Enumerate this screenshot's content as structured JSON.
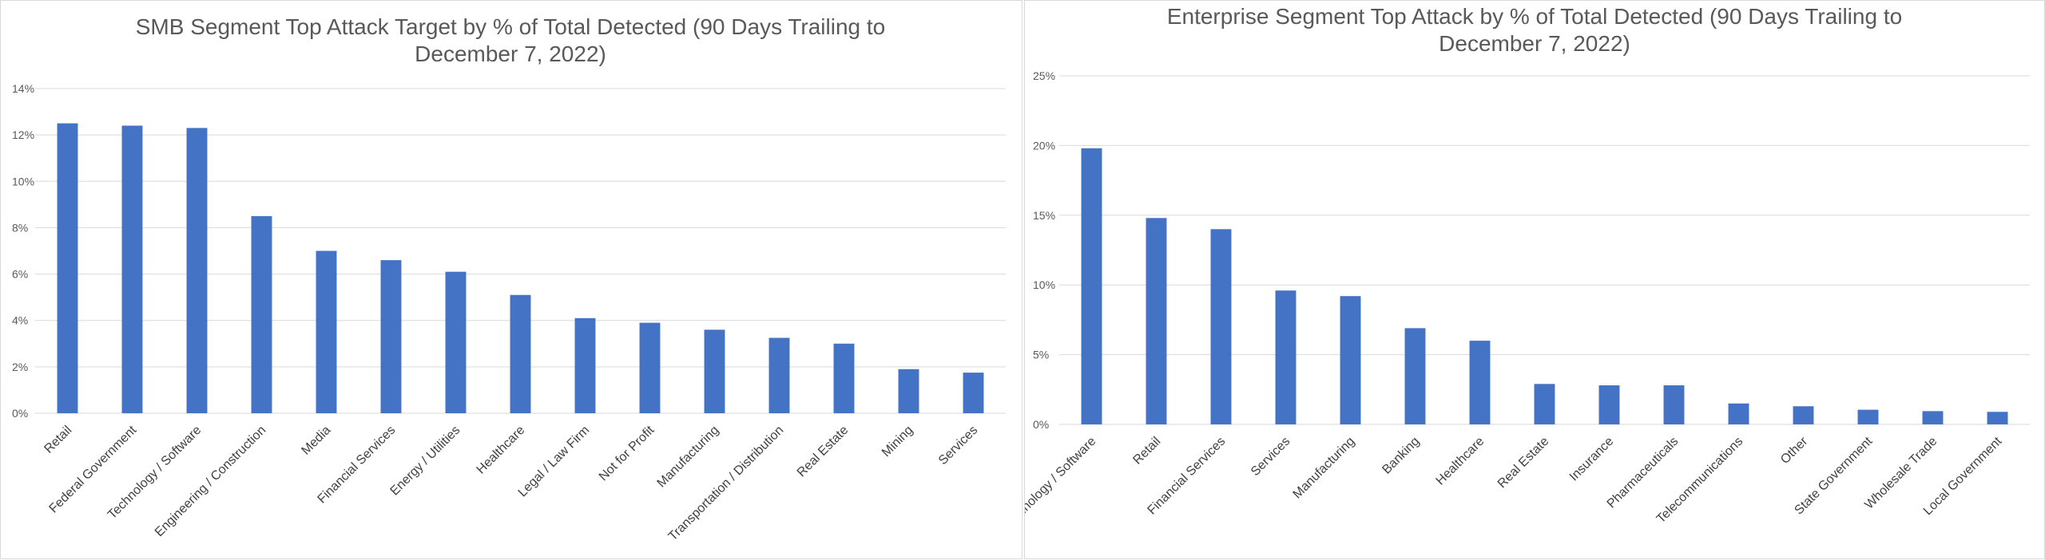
{
  "chart_data": [
    {
      "type": "bar",
      "title_lines": [
        "SMB Segment Top Attack Target by % of Total Detected (90 Days Trailing to",
        "December 7, 2022)"
      ],
      "categories": [
        "Retail",
        "Federal Government",
        "Technology / Software",
        "Engineering / Construction",
        "Media",
        "Financial Services",
        "Energy / Utilities",
        "Healthcare",
        "Legal / Law Firm",
        "Not for Profit",
        "Manufacturing",
        "Transportation / Distribution",
        "Real Estate",
        "Mining",
        "Services"
      ],
      "values": [
        12.5,
        12.4,
        12.3,
        8.5,
        7.0,
        6.6,
        6.1,
        5.1,
        4.1,
        3.9,
        3.6,
        3.25,
        3.0,
        1.9,
        1.75
      ],
      "value_format": "percent",
      "ylim": [
        0,
        14
      ],
      "yticks": [
        0,
        2,
        4,
        6,
        8,
        10,
        12,
        14
      ],
      "ytick_labels": [
        "0%",
        "2%",
        "4%",
        "6%",
        "8%",
        "10%",
        "12%",
        "14%"
      ],
      "xlabel": "",
      "ylabel": "",
      "grid": true,
      "legend": "none",
      "bar_color": "#4472C4",
      "grid_color": "#d9d9d9"
    },
    {
      "type": "bar",
      "title_lines": [
        "Enterprise Segment Top Attack by % of Total Detected (90 Days Trailing to",
        "December 7, 2022)"
      ],
      "categories": [
        "Technology / Software",
        "Retail",
        "Financial Services",
        "Services",
        "Manufacturing",
        "Banking",
        "Healthcare",
        "Real Estate",
        "Insurance",
        "Pharmaceuticals",
        "Telecommunications",
        "Other",
        "State Government",
        "Wholesale Trade",
        "Local Government"
      ],
      "values": [
        19.8,
        14.8,
        14.0,
        9.6,
        9.2,
        6.9,
        6.0,
        2.9,
        2.8,
        2.8,
        1.5,
        1.3,
        1.05,
        0.95,
        0.9
      ],
      "value_format": "percent",
      "ylim": [
        0,
        25
      ],
      "yticks": [
        0,
        5,
        10,
        15,
        20,
        25
      ],
      "ytick_labels": [
        "0%",
        "5%",
        "10%",
        "15%",
        "20%",
        "25%"
      ],
      "xlabel": "",
      "ylabel": "",
      "grid": true,
      "legend": "none",
      "bar_color": "#4472C4",
      "grid_color": "#d9d9d9"
    }
  ]
}
